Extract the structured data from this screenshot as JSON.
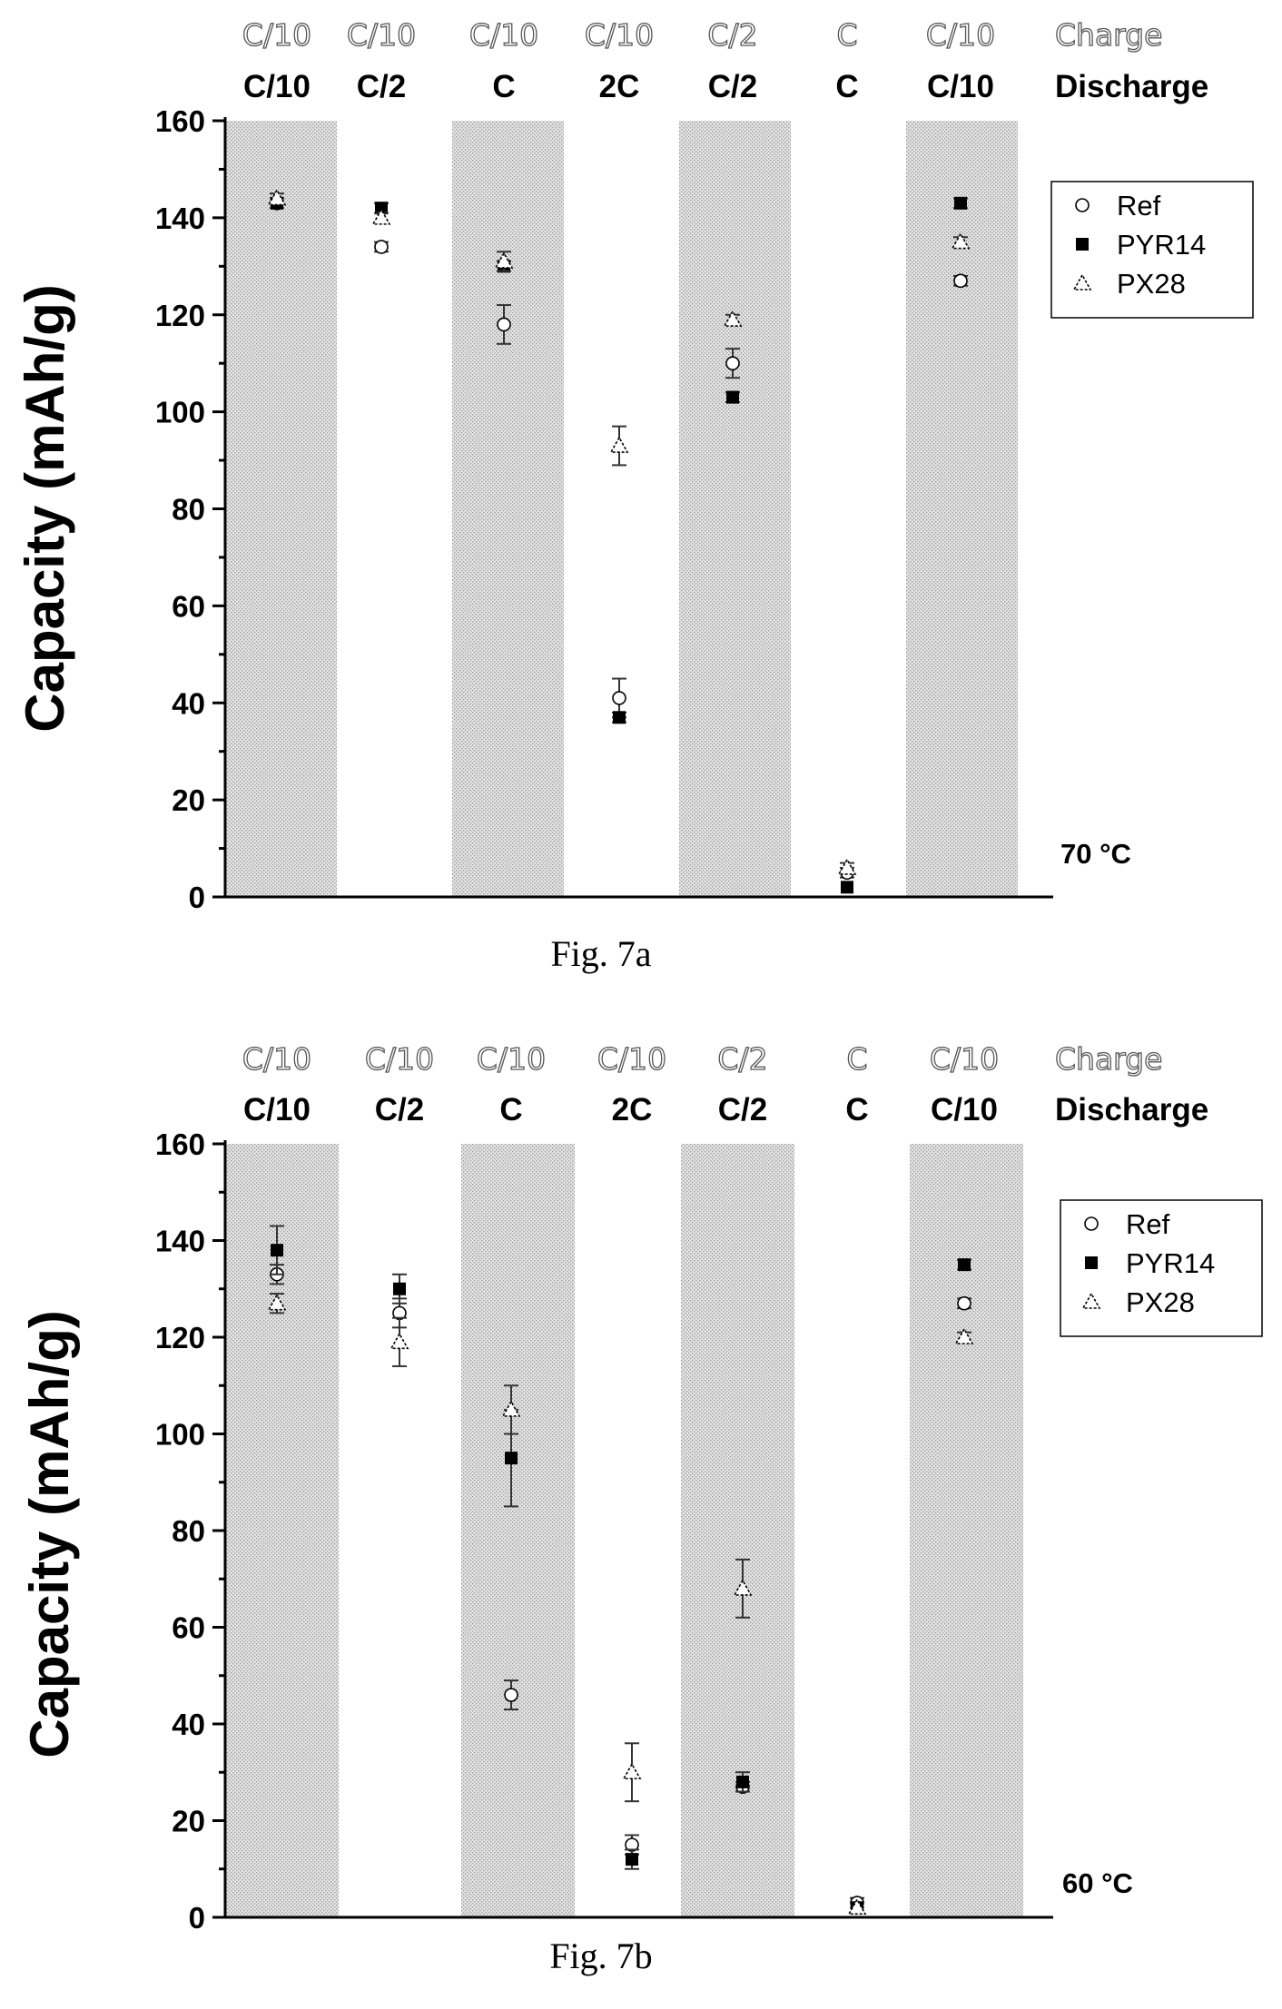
{
  "chart_data": [
    {
      "type": "scatter",
      "caption": "Fig. 7a",
      "ylabel": "Capacity (mAh/g)",
      "ylim": [
        0,
        160
      ],
      "yticks": [
        0,
        20,
        40,
        60,
        80,
        100,
        120,
        140,
        160
      ],
      "temperature_label": "70 °C",
      "row_labels": {
        "charge": "Charge",
        "discharge": "Discharge"
      },
      "charge_rates": [
        "C/10",
        "C/10",
        "C/10",
        "C/10",
        "C/2",
        "C",
        "C/10"
      ],
      "discharge_rates": [
        "C/10",
        "C/2",
        "C",
        "2C",
        "C/2",
        "C",
        "C/10"
      ],
      "legend": {
        "placement": "top-right"
      },
      "series": [
        {
          "name": "Ref",
          "marker": "open-circle",
          "values": [
            143,
            134,
            118,
            41,
            110,
            5,
            127
          ],
          "errors": [
            1,
            1,
            4,
            4,
            3,
            1,
            1
          ]
        },
        {
          "name": "PYR14",
          "marker": "filled-square",
          "values": [
            143,
            142,
            130,
            37,
            103,
            2,
            143
          ],
          "errors": [
            0,
            1,
            1,
            1,
            1,
            0,
            1
          ]
        },
        {
          "name": "PX28",
          "marker": "triangle",
          "values": [
            144,
            140,
            131,
            93,
            119,
            6,
            135
          ],
          "errors": [
            1,
            1,
            2,
            4,
            1,
            1,
            1
          ]
        }
      ]
    },
    {
      "type": "scatter",
      "caption": "Fig. 7b",
      "ylabel": "Capacity (mAh/g)",
      "ylim": [
        0,
        160
      ],
      "yticks": [
        0,
        20,
        40,
        60,
        80,
        100,
        120,
        140,
        160
      ],
      "temperature_label": "60 °C",
      "row_labels": {
        "charge": "Charge",
        "discharge": "Discharge"
      },
      "charge_rates": [
        "C/10",
        "C/10",
        "C/10",
        "C/10",
        "C/2",
        "C",
        "C/10"
      ],
      "discharge_rates": [
        "C/10",
        "C/2",
        "C",
        "2C",
        "C/2",
        "C",
        "C/10"
      ],
      "legend": {
        "placement": "top-right"
      },
      "series": [
        {
          "name": "Ref",
          "marker": "open-circle",
          "values": [
            133,
            125,
            46,
            15,
            27,
            3,
            127
          ],
          "errors": [
            2,
            3,
            3,
            2,
            1,
            1,
            1
          ]
        },
        {
          "name": "PYR14",
          "marker": "filled-square",
          "values": [
            138,
            130,
            95,
            12,
            28,
            2,
            135
          ],
          "errors": [
            5,
            3,
            10,
            2,
            2,
            0,
            1
          ]
        },
        {
          "name": "PX28",
          "marker": "triangle",
          "values": [
            127,
            119,
            105,
            30,
            68,
            2,
            120
          ],
          "errors": [
            2,
            5,
            5,
            6,
            6,
            0,
            1
          ]
        }
      ]
    }
  ]
}
